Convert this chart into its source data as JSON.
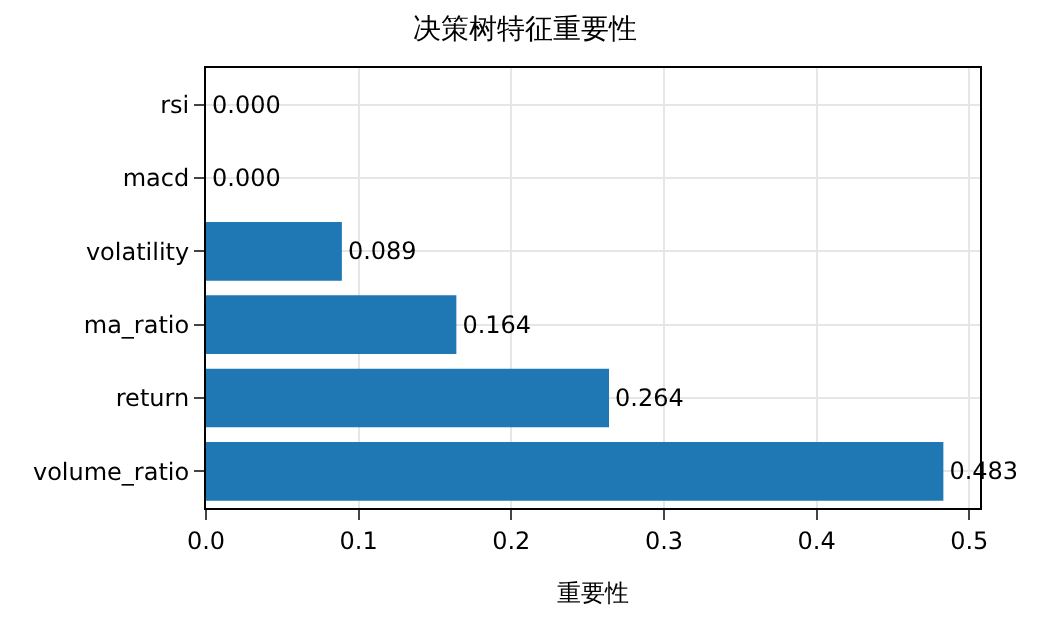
{
  "chart_data": {
    "type": "bar",
    "orientation": "horizontal",
    "title": "决策树特征重要性",
    "xlabel": "重要性",
    "categories": [
      "rsi",
      "macd",
      "volatility",
      "ma_ratio",
      "return",
      "volume_ratio"
    ],
    "values": [
      0.0,
      0.0,
      0.089,
      0.164,
      0.264,
      0.483
    ],
    "value_labels": [
      "0.000",
      "0.000",
      "0.089",
      "0.164",
      "0.264",
      "0.483"
    ],
    "color": "#1f77b4",
    "xlim": [
      0,
      0.507
    ],
    "xticks": [
      {
        "value": 0,
        "label": "0.0"
      },
      0.1,
      0.2,
      0.3,
      0.4,
      0.5
    ],
    "grid": true
  }
}
